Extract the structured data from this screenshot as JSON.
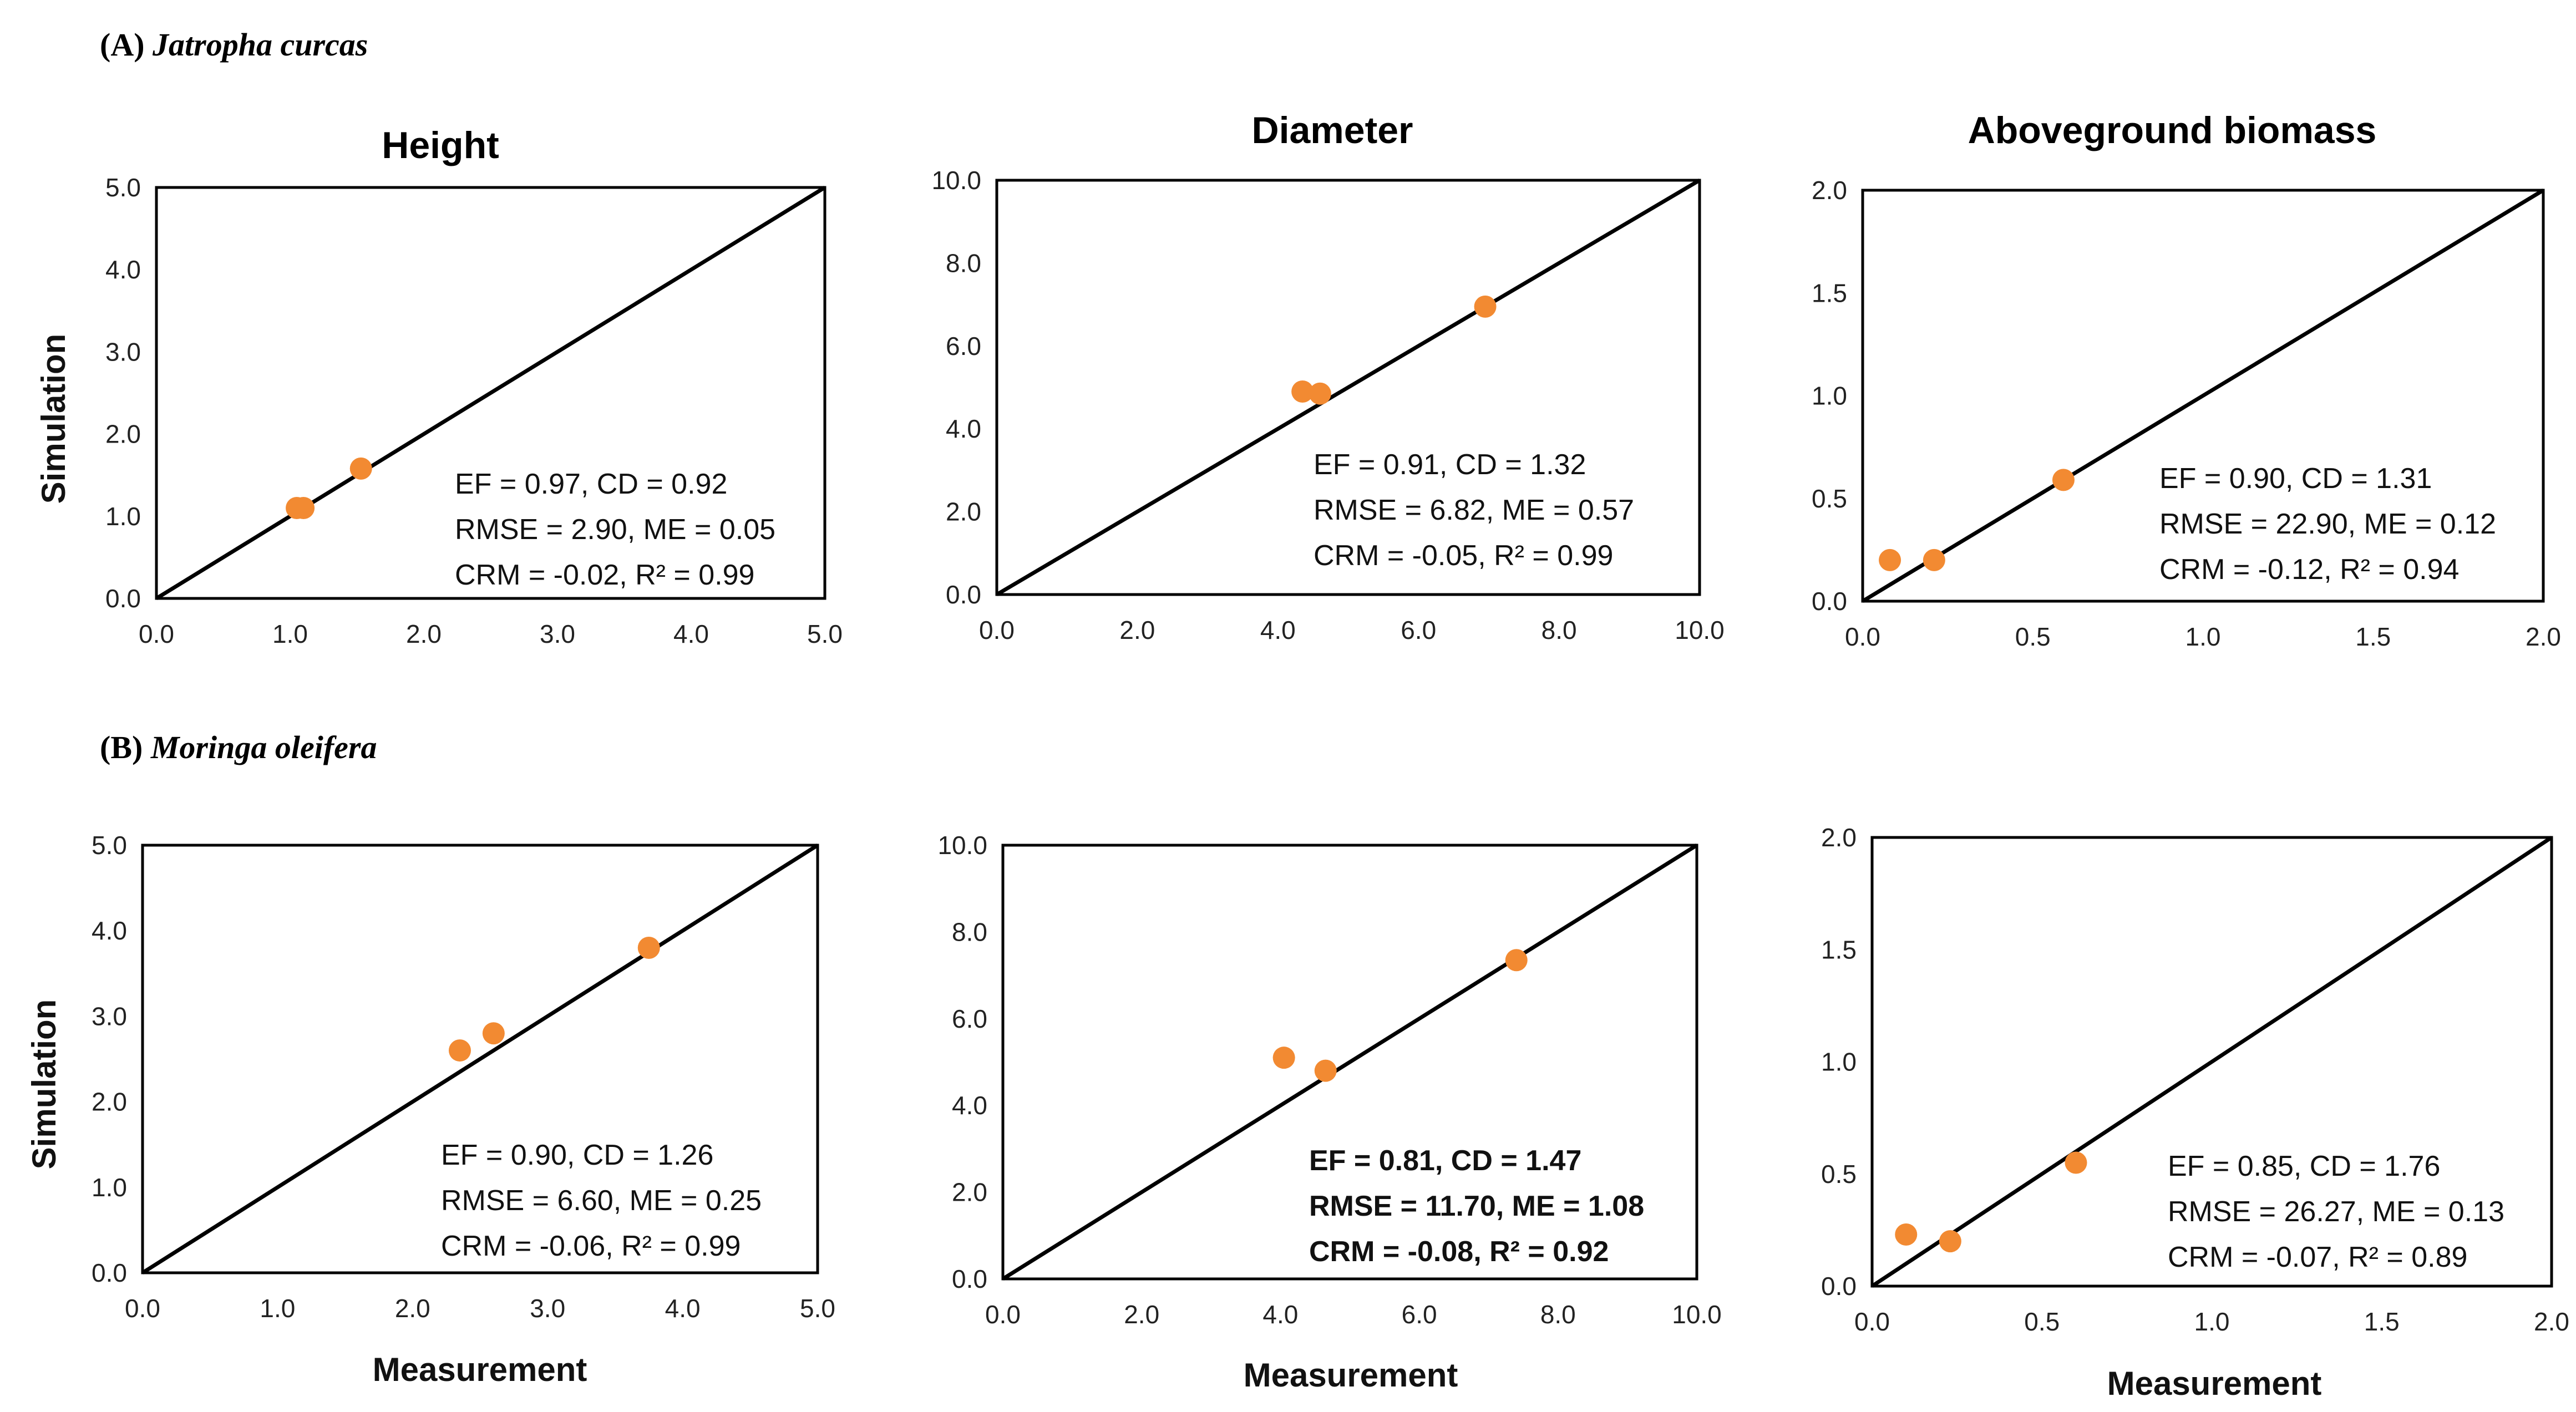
{
  "sections": [
    {
      "label": "(A)",
      "species": "Jatropha curcas"
    },
    {
      "label": "(B)",
      "species": "Moringa oleifera"
    }
  ],
  "column_titles": [
    "Height",
    "Diameter",
    "Aboveground biomass"
  ],
  "axis_labels": {
    "y": "Simulation",
    "x": "Measurement"
  },
  "colors": {
    "point": "#F28A32",
    "line": "#000000",
    "frame": "#000000"
  },
  "chart_data": [
    {
      "type": "scatter",
      "id": "A-height",
      "row": 0,
      "col": 0,
      "xlim": [
        0,
        5
      ],
      "ylim": [
        0,
        5
      ],
      "ticks": [
        0,
        1,
        2,
        3,
        4,
        5
      ],
      "decimals": 1,
      "points": [
        [
          1.05,
          1.1
        ],
        [
          1.1,
          1.1
        ],
        [
          1.53,
          1.58
        ]
      ],
      "stats": [
        "EF = 0.97, CD = 0.92",
        "RMSE = 2.90, ME = 0.05",
        "CRM = -0.02, R² = 0.99"
      ],
      "stats_bold": false
    },
    {
      "type": "scatter",
      "id": "A-diameter",
      "row": 0,
      "col": 1,
      "xlim": [
        0,
        10
      ],
      "ylim": [
        0,
        10
      ],
      "xticks": [
        0,
        2,
        4,
        6,
        8,
        10
      ],
      "yticks": [
        0,
        2,
        4,
        6,
        8,
        10
      ],
      "decimals": 1,
      "points": [
        [
          4.35,
          4.9
        ],
        [
          4.6,
          4.85
        ],
        [
          6.95,
          6.95
        ]
      ],
      "stats": [
        "EF = 0.91, CD = 1.32",
        "RMSE = 6.82, ME = 0.57",
        "CRM = -0.05, R² = 0.99"
      ],
      "stats_bold": false
    },
    {
      "type": "scatter",
      "id": "A-biomass",
      "row": 0,
      "col": 2,
      "xlim": [
        0,
        2
      ],
      "ylim": [
        0,
        2
      ],
      "ticks": [
        0,
        0.5,
        1,
        1.5,
        2
      ],
      "decimals": 1,
      "points": [
        [
          0.08,
          0.2
        ],
        [
          0.21,
          0.2
        ],
        [
          0.59,
          0.59
        ]
      ],
      "stats": [
        "EF = 0.90, CD = 1.31",
        "RMSE = 22.90, ME = 0.12",
        "CRM = -0.12,  R² =  0.94"
      ],
      "stats_bold": false
    },
    {
      "type": "scatter",
      "id": "B-height",
      "row": 1,
      "col": 0,
      "xlim": [
        0,
        5
      ],
      "ylim": [
        0,
        5
      ],
      "ticks": [
        0,
        1,
        2,
        3,
        4,
        5
      ],
      "decimals": 1,
      "points": [
        [
          2.35,
          2.6
        ],
        [
          2.6,
          2.8
        ],
        [
          3.75,
          3.8
        ]
      ],
      "stats": [
        "EF = 0.90, CD = 1.26",
        "RMSE = 6.60, ME = 0.25",
        "CRM = -0.06, R² =  0.99"
      ],
      "stats_bold": false
    },
    {
      "type": "scatter",
      "id": "B-diameter",
      "row": 1,
      "col": 1,
      "xlim": [
        0,
        10
      ],
      "ylim": [
        0,
        10
      ],
      "xticks": [
        0,
        2,
        4,
        6,
        8,
        10
      ],
      "yticks": [
        0,
        2,
        4,
        6,
        8,
        10
      ],
      "decimals": 1,
      "points": [
        [
          4.05,
          5.1
        ],
        [
          4.65,
          4.8
        ],
        [
          7.4,
          7.35
        ]
      ],
      "stats": [
        "EF = 0.81, CD = 1.47",
        "RMSE = 11.70, ME = 1.08",
        "CRM = -0.08, R² = 0.92"
      ],
      "stats_bold": true
    },
    {
      "type": "scatter",
      "id": "B-biomass",
      "row": 1,
      "col": 2,
      "xlim": [
        0,
        2
      ],
      "ylim": [
        0,
        2
      ],
      "ticks": [
        0,
        0.5,
        1,
        1.5,
        2
      ],
      "decimals": 1,
      "points": [
        [
          0.1,
          0.23
        ],
        [
          0.23,
          0.2
        ],
        [
          0.6,
          0.55
        ]
      ],
      "stats": [
        "EF = 0.85, CD = 1.76",
        "RMSE = 26.27, ME = 0.13",
        "CRM = -0.07, R² =  0.89"
      ],
      "stats_bold": false
    }
  ]
}
